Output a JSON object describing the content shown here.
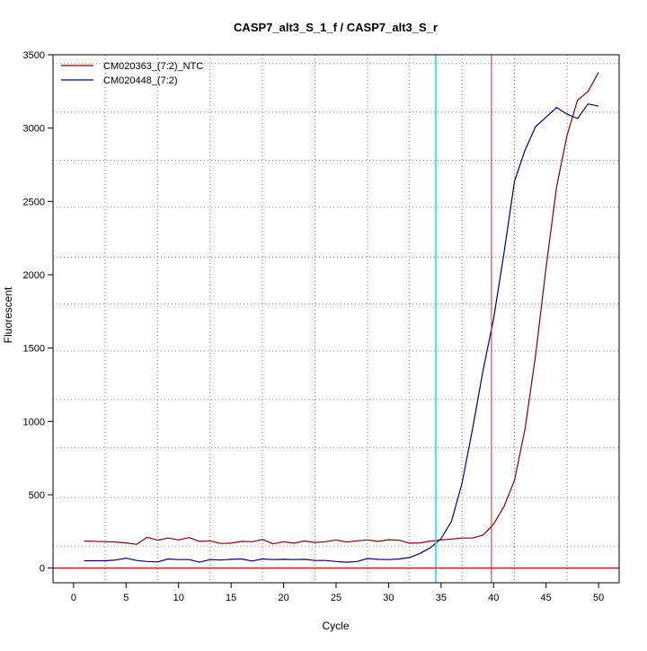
{
  "chart_data": {
    "type": "line",
    "title": "CASP7_alt3_S_1_f / CASP7_alt3_S_r",
    "xlabel": "Cycle",
    "ylabel": "Fluorescent",
    "xlim": [
      -1.96,
      51.96
    ],
    "ylim": [
      -100,
      3500
    ],
    "xticks": [
      0,
      5,
      10,
      15,
      20,
      25,
      30,
      35,
      40,
      45,
      50
    ],
    "yticks": [
      0,
      500,
      1000,
      1500,
      2000,
      2500,
      3000,
      3500
    ],
    "grid": "dotted",
    "grid_x": [
      3,
      8,
      13,
      18,
      23,
      28,
      32,
      37,
      42,
      47
    ],
    "grid_y": [
      150,
      480,
      820,
      1150,
      1480,
      1800,
      2120,
      2460,
      2780,
      3110,
      3440
    ],
    "legend_position": "top-left",
    "series": [
      {
        "name": "CM020363_(7:2)_NTC",
        "color": "#8b0000",
        "x": [
          1,
          2,
          3,
          4,
          5,
          6,
          7,
          8,
          9,
          10,
          11,
          12,
          13,
          14,
          15,
          16,
          17,
          18,
          19,
          20,
          21,
          22,
          23,
          24,
          25,
          26,
          27,
          28,
          29,
          30,
          31,
          32,
          33,
          34,
          35,
          36,
          37,
          38,
          39,
          40,
          41,
          42,
          43,
          44,
          45,
          46,
          47,
          48,
          49,
          50
        ],
        "values": [
          185,
          183,
          180,
          178,
          172,
          162,
          210,
          190,
          205,
          192,
          208,
          182,
          186,
          168,
          170,
          182,
          180,
          195,
          165,
          180,
          170,
          185,
          175,
          180,
          192,
          178,
          186,
          192,
          182,
          193,
          190,
          170,
          172,
          185,
          192,
          198,
          205,
          205,
          225,
          300,
          420,
          600,
          950,
          1450,
          2050,
          2600,
          2950,
          3190,
          3250,
          3380
        ]
      },
      {
        "name": "CM020448_(7:2)",
        "color": "#000080",
        "x": [
          1,
          2,
          3,
          4,
          5,
          6,
          7,
          8,
          9,
          10,
          11,
          12,
          13,
          14,
          15,
          16,
          17,
          18,
          19,
          20,
          21,
          22,
          23,
          24,
          25,
          26,
          27,
          28,
          29,
          30,
          31,
          32,
          33,
          34,
          35,
          36,
          37,
          38,
          39,
          40,
          41,
          42,
          43,
          44,
          45,
          46,
          47,
          48,
          49,
          50
        ],
        "values": [
          50,
          50,
          50,
          55,
          68,
          52,
          45,
          42,
          62,
          58,
          58,
          40,
          58,
          55,
          60,
          62,
          48,
          62,
          58,
          60,
          58,
          60,
          52,
          52,
          45,
          40,
          45,
          65,
          60,
          58,
          62,
          72,
          100,
          140,
          200,
          320,
          580,
          950,
          1350,
          1700,
          2150,
          2640,
          2850,
          3010,
          3075,
          3140,
          3095,
          3065,
          3165,
          3150
        ]
      }
    ],
    "reference_lines": [
      {
        "orientation": "vertical",
        "x": 34.5,
        "color": "#00e5ee"
      },
      {
        "orientation": "vertical",
        "x": 39.8,
        "color": "#cd2626"
      },
      {
        "orientation": "horizontal",
        "y": 0,
        "color": "#cd2626"
      }
    ]
  }
}
